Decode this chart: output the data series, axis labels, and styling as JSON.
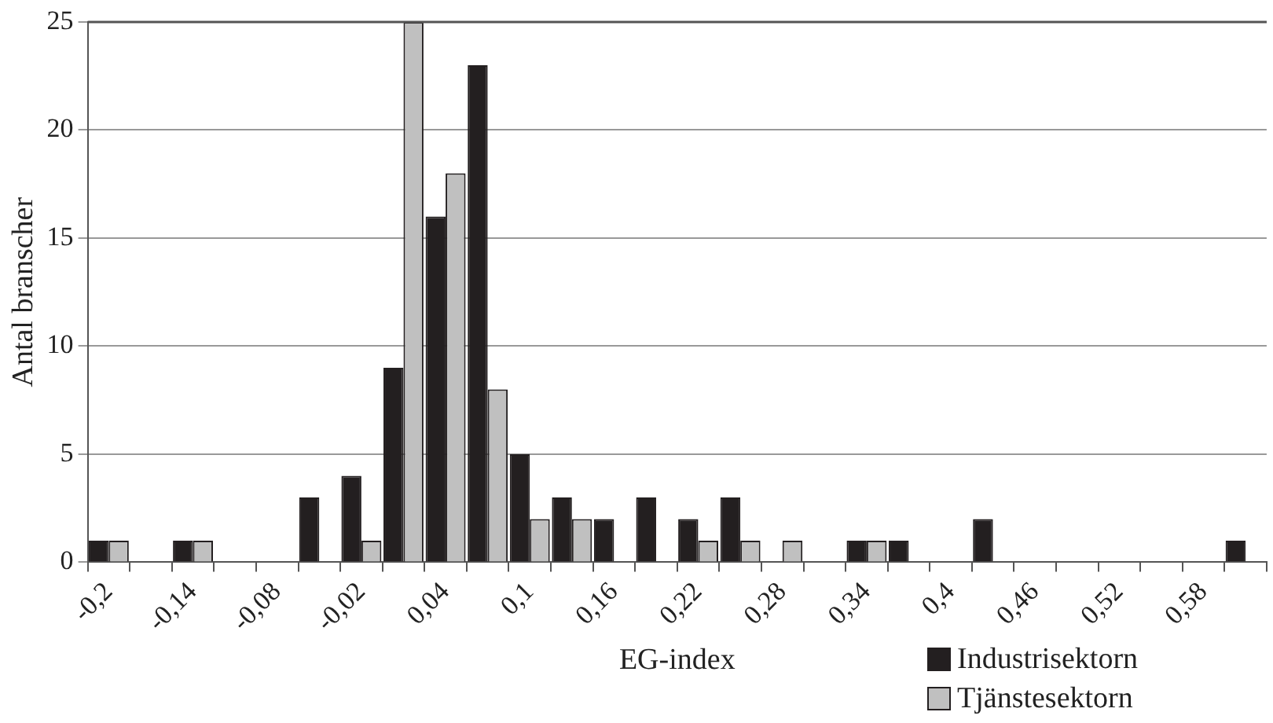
{
  "chart_data": {
    "type": "bar",
    "xlabel": "EG-index",
    "ylabel": "Antal branscher",
    "categories": [
      "-0,2",
      null,
      "-0,14",
      null,
      "-0,08",
      null,
      "-0,02",
      null,
      "0,04",
      null,
      "0,1",
      null,
      "0,16",
      null,
      "0,22",
      null,
      "0,28",
      null,
      "0,34",
      null,
      "0,4",
      null,
      "0,46",
      null,
      "0,52",
      null,
      "0,58",
      null
    ],
    "series": [
      {
        "name": "Industrisektorn",
        "color": "#231f20",
        "values": [
          1,
          0,
          1,
          0,
          0,
          3,
          4,
          9,
          16,
          23,
          5,
          3,
          2,
          3,
          2,
          3,
          0,
          0,
          1,
          1,
          0,
          2,
          0,
          0,
          0,
          0,
          0,
          1
        ]
      },
      {
        "name": "Tjänstesektorn",
        "color": "#c0c0c0",
        "values": [
          1,
          0,
          1,
          0,
          0,
          0,
          1,
          25,
          18,
          8,
          2,
          2,
          0,
          0,
          1,
          1,
          1,
          0,
          1,
          0,
          0,
          0,
          0,
          0,
          0,
          0,
          0,
          0
        ]
      }
    ],
    "ylim": [
      0,
      25
    ],
    "yticks": [
      0,
      5,
      10,
      15,
      20,
      25
    ],
    "grid": "y",
    "legend": "bottom right"
  }
}
